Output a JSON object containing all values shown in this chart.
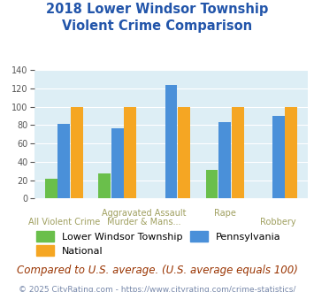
{
  "title_line1": "2018 Lower Windsor Township",
  "title_line2": "Violent Crime Comparison",
  "groups": [
    {
      "name": "All Violent Crime",
      "lwt": 22,
      "pa": 81,
      "nat": 100
    },
    {
      "name": "Aggravated Assault",
      "lwt": 27,
      "pa": 77,
      "nat": 100
    },
    {
      "name": "Murder & Mans...",
      "lwt": 0,
      "pa": 124,
      "nat": 100
    },
    {
      "name": "Rape",
      "lwt": 31,
      "pa": 83,
      "nat": 100
    },
    {
      "name": "Robbery",
      "lwt": 0,
      "pa": 90,
      "nat": 100
    }
  ],
  "color_lwt": "#6abf4b",
  "color_pa": "#4a90d9",
  "color_nat": "#f5a623",
  "title_color": "#2255aa",
  "plot_bg": "#ddeef5",
  "legend_lwt": "Lower Windsor Township",
  "legend_nat": "National",
  "legend_pa": "Pennsylvania",
  "footnote1": "Compared to U.S. average. (U.S. average equals 100)",
  "footnote2": "© 2025 CityRating.com - https://www.cityrating.com/crime-statistics/",
  "ylim": [
    0,
    140
  ],
  "yticks": [
    0,
    20,
    40,
    60,
    80,
    100,
    120,
    140
  ],
  "grid_color": "#ffffff",
  "label_color_top": "#a0a060",
  "label_color_bot": "#a0a060",
  "title_fontsize": 10.5,
  "axis_label_fontsize": 7,
  "legend_fontsize": 8,
  "footnote1_fontsize": 8.5,
  "footnote2_fontsize": 6.5
}
